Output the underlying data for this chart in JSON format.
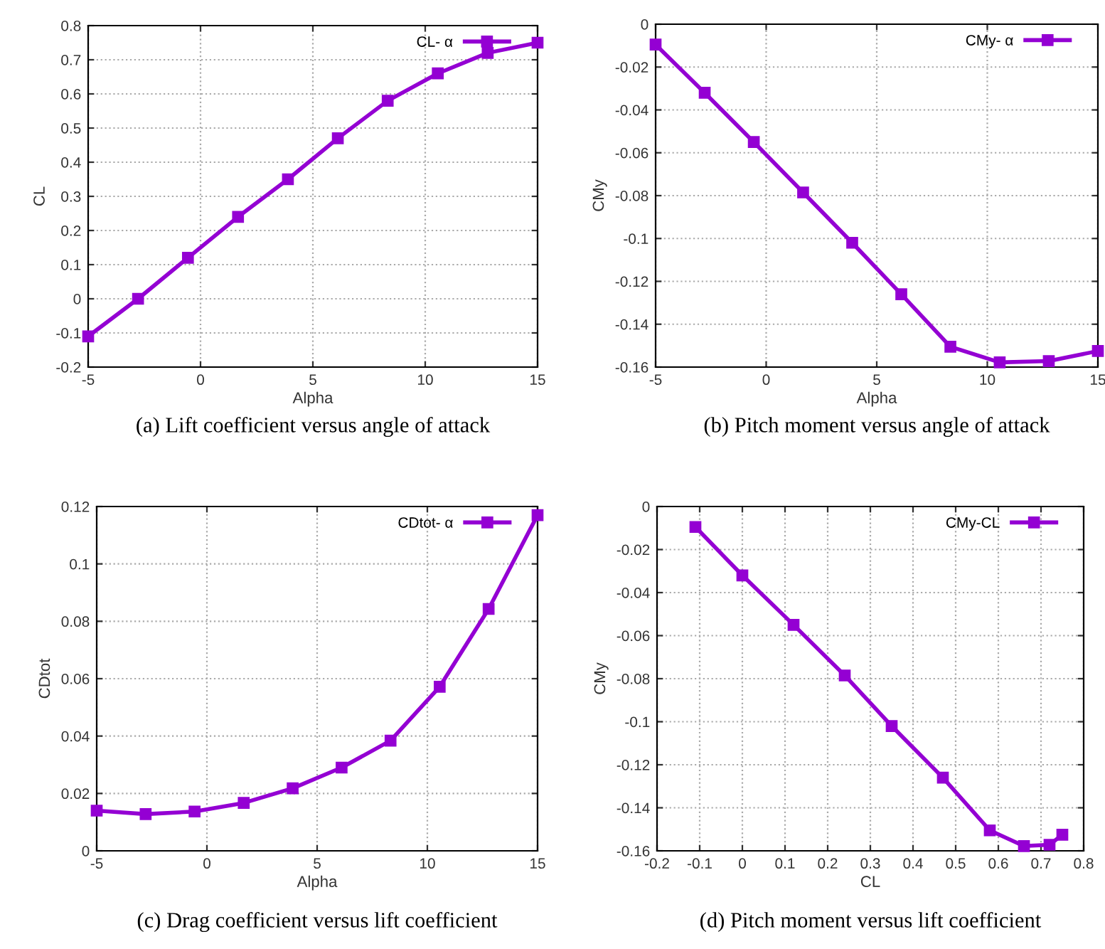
{
  "chart_data": [
    {
      "type": "line",
      "xlabel": "Alpha",
      "ylabel": "CL",
      "annotations": [
        "(a) Lift coefficient versus angle of attack"
      ],
      "x": [
        -5,
        -2.78,
        -0.56,
        1.67,
        3.89,
        6.11,
        8.33,
        10.56,
        12.78,
        15
      ],
      "series": [
        {
          "name": "CL- α",
          "color": "#9400d3",
          "values": [
            -0.11,
            0.0,
            0.12,
            0.24,
            0.35,
            0.47,
            0.58,
            0.66,
            0.72,
            0.75
          ]
        }
      ],
      "xlim": [
        -5,
        15
      ],
      "xticks": [
        -5,
        0,
        5,
        10,
        15
      ],
      "ylim": [
        -0.2,
        0.8
      ],
      "yticks": [
        -0.2,
        -0.1,
        0,
        0.1,
        0.2,
        0.3,
        0.4,
        0.5,
        0.6,
        0.7,
        0.8
      ],
      "grid": true,
      "legend": "top right",
      "marker": "square",
      "line_style": "solid"
    },
    {
      "type": "line",
      "xlabel": "Alpha",
      "ylabel": "CMy",
      "annotations": [
        "(b) Pitch moment versus angle of attack"
      ],
      "x": [
        -5,
        -2.78,
        -0.56,
        1.67,
        3.89,
        6.11,
        8.33,
        10.56,
        12.78,
        15
      ],
      "series": [
        {
          "name": "CMy- α",
          "color": "#9400d3",
          "values": [
            -0.0095,
            -0.032,
            -0.055,
            -0.0785,
            -0.102,
            -0.126,
            -0.1505,
            -0.1578,
            -0.1572,
            -0.1525
          ]
        }
      ],
      "xlim": [
        -5,
        15
      ],
      "xticks": [
        -5,
        0,
        5,
        10,
        15
      ],
      "ylim": [
        -0.16,
        0
      ],
      "yticks": [
        -0.16,
        -0.14,
        -0.12,
        -0.1,
        -0.08,
        -0.06,
        -0.04,
        -0.02,
        0
      ],
      "grid": true,
      "legend": "top right",
      "marker": "square",
      "line_style": "solid"
    },
    {
      "type": "line",
      "xlabel": "Alpha",
      "ylabel": "CDtot",
      "annotations": [
        "(c) Drag coefficient versus lift coefficient"
      ],
      "x": [
        -5,
        -2.78,
        -0.56,
        1.67,
        3.89,
        6.11,
        8.33,
        10.56,
        12.78,
        15
      ],
      "series": [
        {
          "name": "CDtot- α",
          "color": "#9400d3",
          "values": [
            0.014,
            0.0128,
            0.0137,
            0.0167,
            0.0218,
            0.029,
            0.0384,
            0.0572,
            0.0843,
            0.117
          ]
        }
      ],
      "xlim": [
        -5,
        15
      ],
      "xticks": [
        -5,
        0,
        5,
        10,
        15
      ],
      "ylim": [
        0,
        0.12
      ],
      "yticks": [
        0,
        0.02,
        0.04,
        0.06,
        0.08,
        0.1,
        0.12
      ],
      "grid": true,
      "legend": "top right",
      "marker": "square",
      "line_style": "solid"
    },
    {
      "type": "line",
      "xlabel": "CL",
      "ylabel": "CMy",
      "annotations": [
        "(d) Pitch moment versus lift coefficient"
      ],
      "x": [
        -0.11,
        0.0,
        0.12,
        0.24,
        0.35,
        0.47,
        0.58,
        0.66,
        0.72,
        0.75
      ],
      "series": [
        {
          "name": "CMy-CL",
          "color": "#9400d3",
          "values": [
            -0.0095,
            -0.032,
            -0.055,
            -0.0785,
            -0.102,
            -0.126,
            -0.1505,
            -0.1578,
            -0.1572,
            -0.1525
          ]
        }
      ],
      "xlim": [
        -0.2,
        0.8
      ],
      "xticks": [
        -0.2,
        -0.1,
        0,
        0.1,
        0.2,
        0.3,
        0.4,
        0.5,
        0.6,
        0.7,
        0.8
      ],
      "ylim": [
        -0.16,
        0
      ],
      "yticks": [
        -0.16,
        -0.14,
        -0.12,
        -0.1,
        -0.08,
        -0.06,
        -0.04,
        -0.02,
        0
      ],
      "grid": true,
      "legend": "top right",
      "marker": "square",
      "line_style": "solid"
    }
  ]
}
